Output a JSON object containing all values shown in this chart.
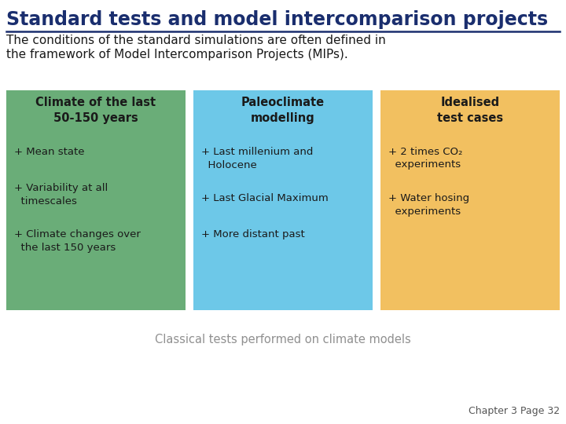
{
  "title": "Standard tests and model intercomparison projects",
  "title_color": "#1a2e6e",
  "subtitle_line1": "The conditions of the standard simulations are often defined in",
  "subtitle_line2": "the framework of Model Intercomparison Projects (MIPs).",
  "subtitle_color": "#1a1a1a",
  "background_color": "#ffffff",
  "caption": "Classical tests performed on climate models",
  "caption_color": "#909090",
  "footer": "Chapter 3 Page 32",
  "footer_color": "#555555",
  "line_color": "#1a2e6e",
  "boxes": [
    {
      "title": "Climate of the last\n50-150 years",
      "color": "#6aad78",
      "title_color": "#1a1a1a",
      "items": [
        "+ Mean state",
        "+ Variability at all\n  timescales",
        "+ Climate changes over\n  the last 150 years"
      ]
    },
    {
      "title": "Paleoclimate\nmodelling",
      "color": "#6dc8e8",
      "title_color": "#1a1a1a",
      "items": [
        "+ Last millenium and\n  Holocene",
        "+ Last Glacial Maximum",
        "+ More distant past"
      ]
    },
    {
      "title": "Idealised\ntest cases",
      "color": "#f2c060",
      "title_color": "#1a1a1a",
      "items": [
        "+ 2 times CO₂\n  experiments",
        "+ Water hosing\n  experiments"
      ]
    }
  ]
}
